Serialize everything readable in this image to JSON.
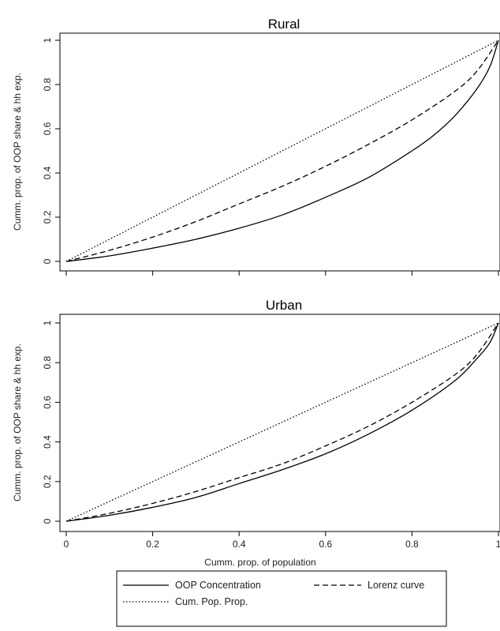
{
  "chart_data": [
    {
      "type": "line",
      "title": "Rural",
      "ylabel": "Cumm. prop. of OOP share & hh exp.",
      "xlabel": "",
      "xlim": [
        0,
        1
      ],
      "ylim": [
        0,
        1
      ],
      "yticks": [
        "0",
        "0.2",
        "0.4",
        "0.6",
        "0.8",
        "1"
      ],
      "xticks": [],
      "series": [
        {
          "name": "OOP Concentration",
          "style": "solid",
          "x": [
            0,
            0.1,
            0.2,
            0.3,
            0.4,
            0.5,
            0.6,
            0.7,
            0.8,
            0.85,
            0.9,
            0.95,
            0.98,
            1
          ],
          "y": [
            0,
            0.025,
            0.06,
            0.1,
            0.15,
            0.21,
            0.29,
            0.38,
            0.5,
            0.57,
            0.66,
            0.78,
            0.88,
            1
          ]
        },
        {
          "name": "Lorenz curve",
          "style": "dashed",
          "x": [
            0,
            0.1,
            0.2,
            0.3,
            0.4,
            0.5,
            0.6,
            0.7,
            0.8,
            0.9,
            0.95,
            1
          ],
          "y": [
            0,
            0.05,
            0.11,
            0.18,
            0.26,
            0.34,
            0.43,
            0.53,
            0.64,
            0.77,
            0.86,
            1
          ]
        },
        {
          "name": "Cum. Pop. Prop.",
          "style": "dotted",
          "x": [
            0,
            1
          ],
          "y": [
            0,
            1
          ]
        }
      ]
    },
    {
      "type": "line",
      "title": "Urban",
      "ylabel": "Cumm. prop. of OOP share & hh exp.",
      "xlabel": "Cumm. prop. of population",
      "xlim": [
        0,
        1
      ],
      "ylim": [
        0,
        1
      ],
      "yticks": [
        "0",
        "0.2",
        "0.4",
        "0.6",
        "0.8",
        "1"
      ],
      "xticks": [
        "0",
        "0.2",
        "0.4",
        "0.6",
        "0.8",
        "1"
      ],
      "series": [
        {
          "name": "OOP Concentration",
          "style": "solid",
          "x": [
            0,
            0.1,
            0.2,
            0.3,
            0.4,
            0.5,
            0.6,
            0.7,
            0.8,
            0.9,
            0.95,
            0.98,
            1
          ],
          "y": [
            0,
            0.03,
            0.07,
            0.12,
            0.19,
            0.26,
            0.34,
            0.44,
            0.56,
            0.71,
            0.82,
            0.9,
            1
          ]
        },
        {
          "name": "Lorenz curve",
          "style": "dashed",
          "x": [
            0,
            0.1,
            0.2,
            0.3,
            0.4,
            0.5,
            0.6,
            0.7,
            0.8,
            0.9,
            0.95,
            1
          ],
          "y": [
            0,
            0.04,
            0.09,
            0.15,
            0.22,
            0.29,
            0.38,
            0.48,
            0.6,
            0.74,
            0.84,
            1
          ]
        },
        {
          "name": "Cum. Pop. Prop.",
          "style": "dotted",
          "x": [
            0,
            1
          ],
          "y": [
            0,
            1
          ]
        }
      ]
    }
  ],
  "legend": {
    "position": "bottom",
    "items": [
      {
        "label": "OOP Concentration",
        "style": "solid"
      },
      {
        "label": "Lorenz curve",
        "style": "dashed"
      },
      {
        "label": "Cum. Pop. Prop.",
        "style": "dotted"
      }
    ]
  }
}
